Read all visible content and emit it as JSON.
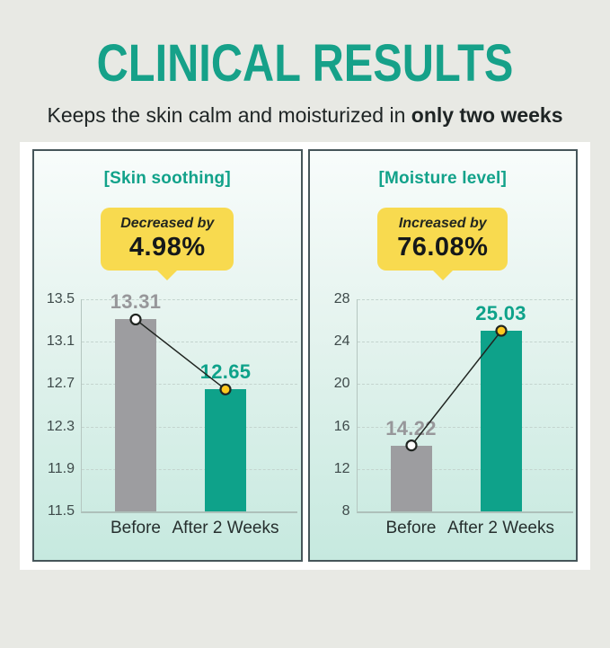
{
  "page": {
    "title": "CLINICAL RESULTS",
    "subtitle_regular": "Keeps the skin calm and moisturized in",
    "subtitle_bold": "only two weeks"
  },
  "colors": {
    "accent_teal": "#16A189",
    "bar_gray": "#9D9DA0",
    "bar_teal": "#0EA28A",
    "bubble_yellow": "#F8DA4F",
    "marker_yellow": "#FFC91F",
    "marker_white": "#FFFFFF",
    "page_background": "#E8E9E4",
    "card_background": "#FFFFFF",
    "panel_border": "#46565A",
    "value_label_gray": "#97979A",
    "ink": "#20262A"
  },
  "chart_data": [
    {
      "type": "bar",
      "title": "[Skin soothing]",
      "badge": {
        "label": "Decreased by",
        "value": "4.98%"
      },
      "categories": [
        "Before",
        "After 2 Weeks"
      ],
      "values": [
        13.31,
        12.65
      ],
      "value_labels": [
        "13.31",
        "12.65"
      ],
      "bar_colors": [
        "#9D9DA0",
        "#0EA28A"
      ],
      "value_label_colors": [
        "#97979A",
        "#0EA28A"
      ],
      "marker_colors": [
        "#FFFFFF",
        "#FFC91F"
      ],
      "ylim": [
        11.5,
        13.5
      ],
      "yticks": [
        "13.5",
        "13.1",
        "12.7",
        "12.3",
        "11.9",
        "11.5"
      ],
      "xlabel": "",
      "ylabel": "",
      "grid": "horizontal-dashed",
      "legend": "none",
      "annotation": "trend line connecting bar tops, white marker on Before, yellow marker on After 2 Weeks"
    },
    {
      "type": "bar",
      "title": "[Moisture level]",
      "badge": {
        "label": "Increased by",
        "value": "76.08%"
      },
      "categories": [
        "Before",
        "After 2 Weeks"
      ],
      "values": [
        14.22,
        25.03
      ],
      "value_labels": [
        "14.22",
        "25.03"
      ],
      "bar_colors": [
        "#9D9DA0",
        "#0EA28A"
      ],
      "value_label_colors": [
        "#97979A",
        "#0EA28A"
      ],
      "marker_colors": [
        "#FFFFFF",
        "#FFC91F"
      ],
      "ylim": [
        8,
        28
      ],
      "yticks": [
        "28",
        "24",
        "20",
        "16",
        "12",
        "8"
      ],
      "xlabel": "",
      "ylabel": "",
      "grid": "horizontal-dashed",
      "legend": "none",
      "annotation": "trend line connecting bar tops, white marker on Before, yellow marker on After 2 Weeks"
    }
  ]
}
